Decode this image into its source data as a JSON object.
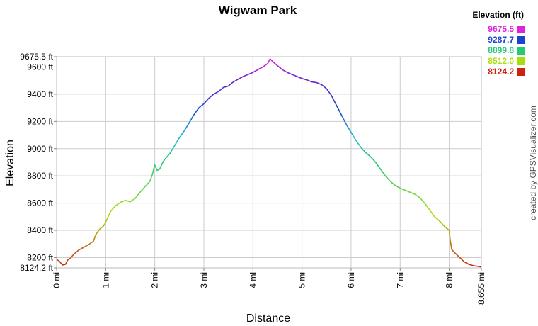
{
  "chart_data": {
    "type": "line",
    "title": "Wigwam Park",
    "xlabel": "Distance",
    "ylabel": "Elevation",
    "xlim": [
      0,
      8.655
    ],
    "ylim": [
      8124.2,
      9675.5
    ],
    "x_unit": "mi",
    "y_unit": "ft",
    "grid": true,
    "x_ticks": [
      {
        "value": 0,
        "label": "0 mi"
      },
      {
        "value": 1,
        "label": "1 mi"
      },
      {
        "value": 2,
        "label": "2 mi"
      },
      {
        "value": 3,
        "label": "3 mi"
      },
      {
        "value": 4,
        "label": "4 mi"
      },
      {
        "value": 5,
        "label": "5 mi"
      },
      {
        "value": 6,
        "label": "6 mi"
      },
      {
        "value": 7,
        "label": "7 mi"
      },
      {
        "value": 8,
        "label": "8 mi"
      },
      {
        "value": 8.655,
        "label": "8.655 mi"
      }
    ],
    "y_ticks": [
      {
        "value": 8124.2,
        "label": "8124.2 ft"
      },
      {
        "value": 8200,
        "label": "8200 ft"
      },
      {
        "value": 8400,
        "label": "8400 ft"
      },
      {
        "value": 8600,
        "label": "8600 ft"
      },
      {
        "value": 8800,
        "label": "8800 ft"
      },
      {
        "value": 9000,
        "label": "9000 ft"
      },
      {
        "value": 9200,
        "label": "9200 ft"
      },
      {
        "value": 9400,
        "label": "9400 ft"
      },
      {
        "value": 9600,
        "label": "9600 ft"
      },
      {
        "value": 9675.5,
        "label": "9675.5 ft"
      }
    ],
    "legend": {
      "title": "Elevation (ft)",
      "position": "top-right",
      "entries": [
        {
          "label": "9675.5",
          "color": "#dd22dd"
        },
        {
          "label": "9287.7",
          "color": "#1a44cc"
        },
        {
          "label": "8899.8",
          "color": "#22cc77"
        },
        {
          "label": "8512.0",
          "color": "#aadd11"
        },
        {
          "label": "8124.2",
          "color": "#cc2211"
        }
      ]
    },
    "colors": {
      "gridline": "#cccccc",
      "frame": "#bbbbbb"
    },
    "series": [
      {
        "x": [
          0,
          0.05,
          0.12,
          0.18,
          0.22,
          0.28,
          0.35,
          0.45,
          0.55,
          0.65,
          0.75,
          0.8,
          0.88,
          0.95,
          1.0,
          1.05,
          1.1,
          1.2,
          1.3,
          1.4,
          1.5,
          1.6,
          1.7,
          1.8,
          1.9,
          1.95,
          2.0,
          2.05,
          2.1,
          2.15,
          2.2,
          2.3,
          2.4,
          2.5,
          2.6,
          2.7,
          2.8,
          2.9,
          3.0,
          3.1,
          3.2,
          3.3,
          3.4,
          3.5,
          3.6,
          3.7,
          3.8,
          3.9,
          4.0,
          4.1,
          4.2,
          4.3,
          4.35,
          4.4,
          4.5,
          4.6,
          4.7,
          4.8,
          4.9,
          5.0,
          5.1,
          5.2,
          5.3,
          5.4,
          5.5,
          5.6,
          5.7,
          5.8,
          5.9,
          6.0,
          6.1,
          6.2,
          6.3,
          6.4,
          6.5,
          6.6,
          6.7,
          6.8,
          6.9,
          7.0,
          7.1,
          7.2,
          7.3,
          7.4,
          7.5,
          7.6,
          7.7,
          7.8,
          7.9,
          8.0,
          8.02,
          8.05,
          8.1,
          8.2,
          8.3,
          8.4,
          8.5,
          8.6,
          8.655
        ],
        "y": [
          8185,
          8175,
          8145,
          8150,
          8180,
          8195,
          8225,
          8255,
          8275,
          8295,
          8320,
          8370,
          8410,
          8430,
          8460,
          8500,
          8540,
          8580,
          8605,
          8620,
          8610,
          8635,
          8680,
          8720,
          8760,
          8810,
          8880,
          8840,
          8850,
          8890,
          8920,
          8960,
          9020,
          9080,
          9130,
          9190,
          9250,
          9300,
          9330,
          9370,
          9400,
          9420,
          9450,
          9460,
          9490,
          9510,
          9530,
          9545,
          9560,
          9580,
          9600,
          9625,
          9660,
          9640,
          9610,
          9580,
          9560,
          9545,
          9530,
          9515,
          9505,
          9490,
          9485,
          9470,
          9440,
          9390,
          9320,
          9250,
          9180,
          9120,
          9060,
          9010,
          8970,
          8940,
          8900,
          8850,
          8800,
          8760,
          8730,
          8710,
          8695,
          8680,
          8665,
          8640,
          8600,
          8550,
          8500,
          8470,
          8430,
          8400,
          8330,
          8260,
          8240,
          8205,
          8170,
          8150,
          8140,
          8135,
          8130
        ]
      }
    ]
  },
  "credit": "created by GPSVisualizer.com"
}
